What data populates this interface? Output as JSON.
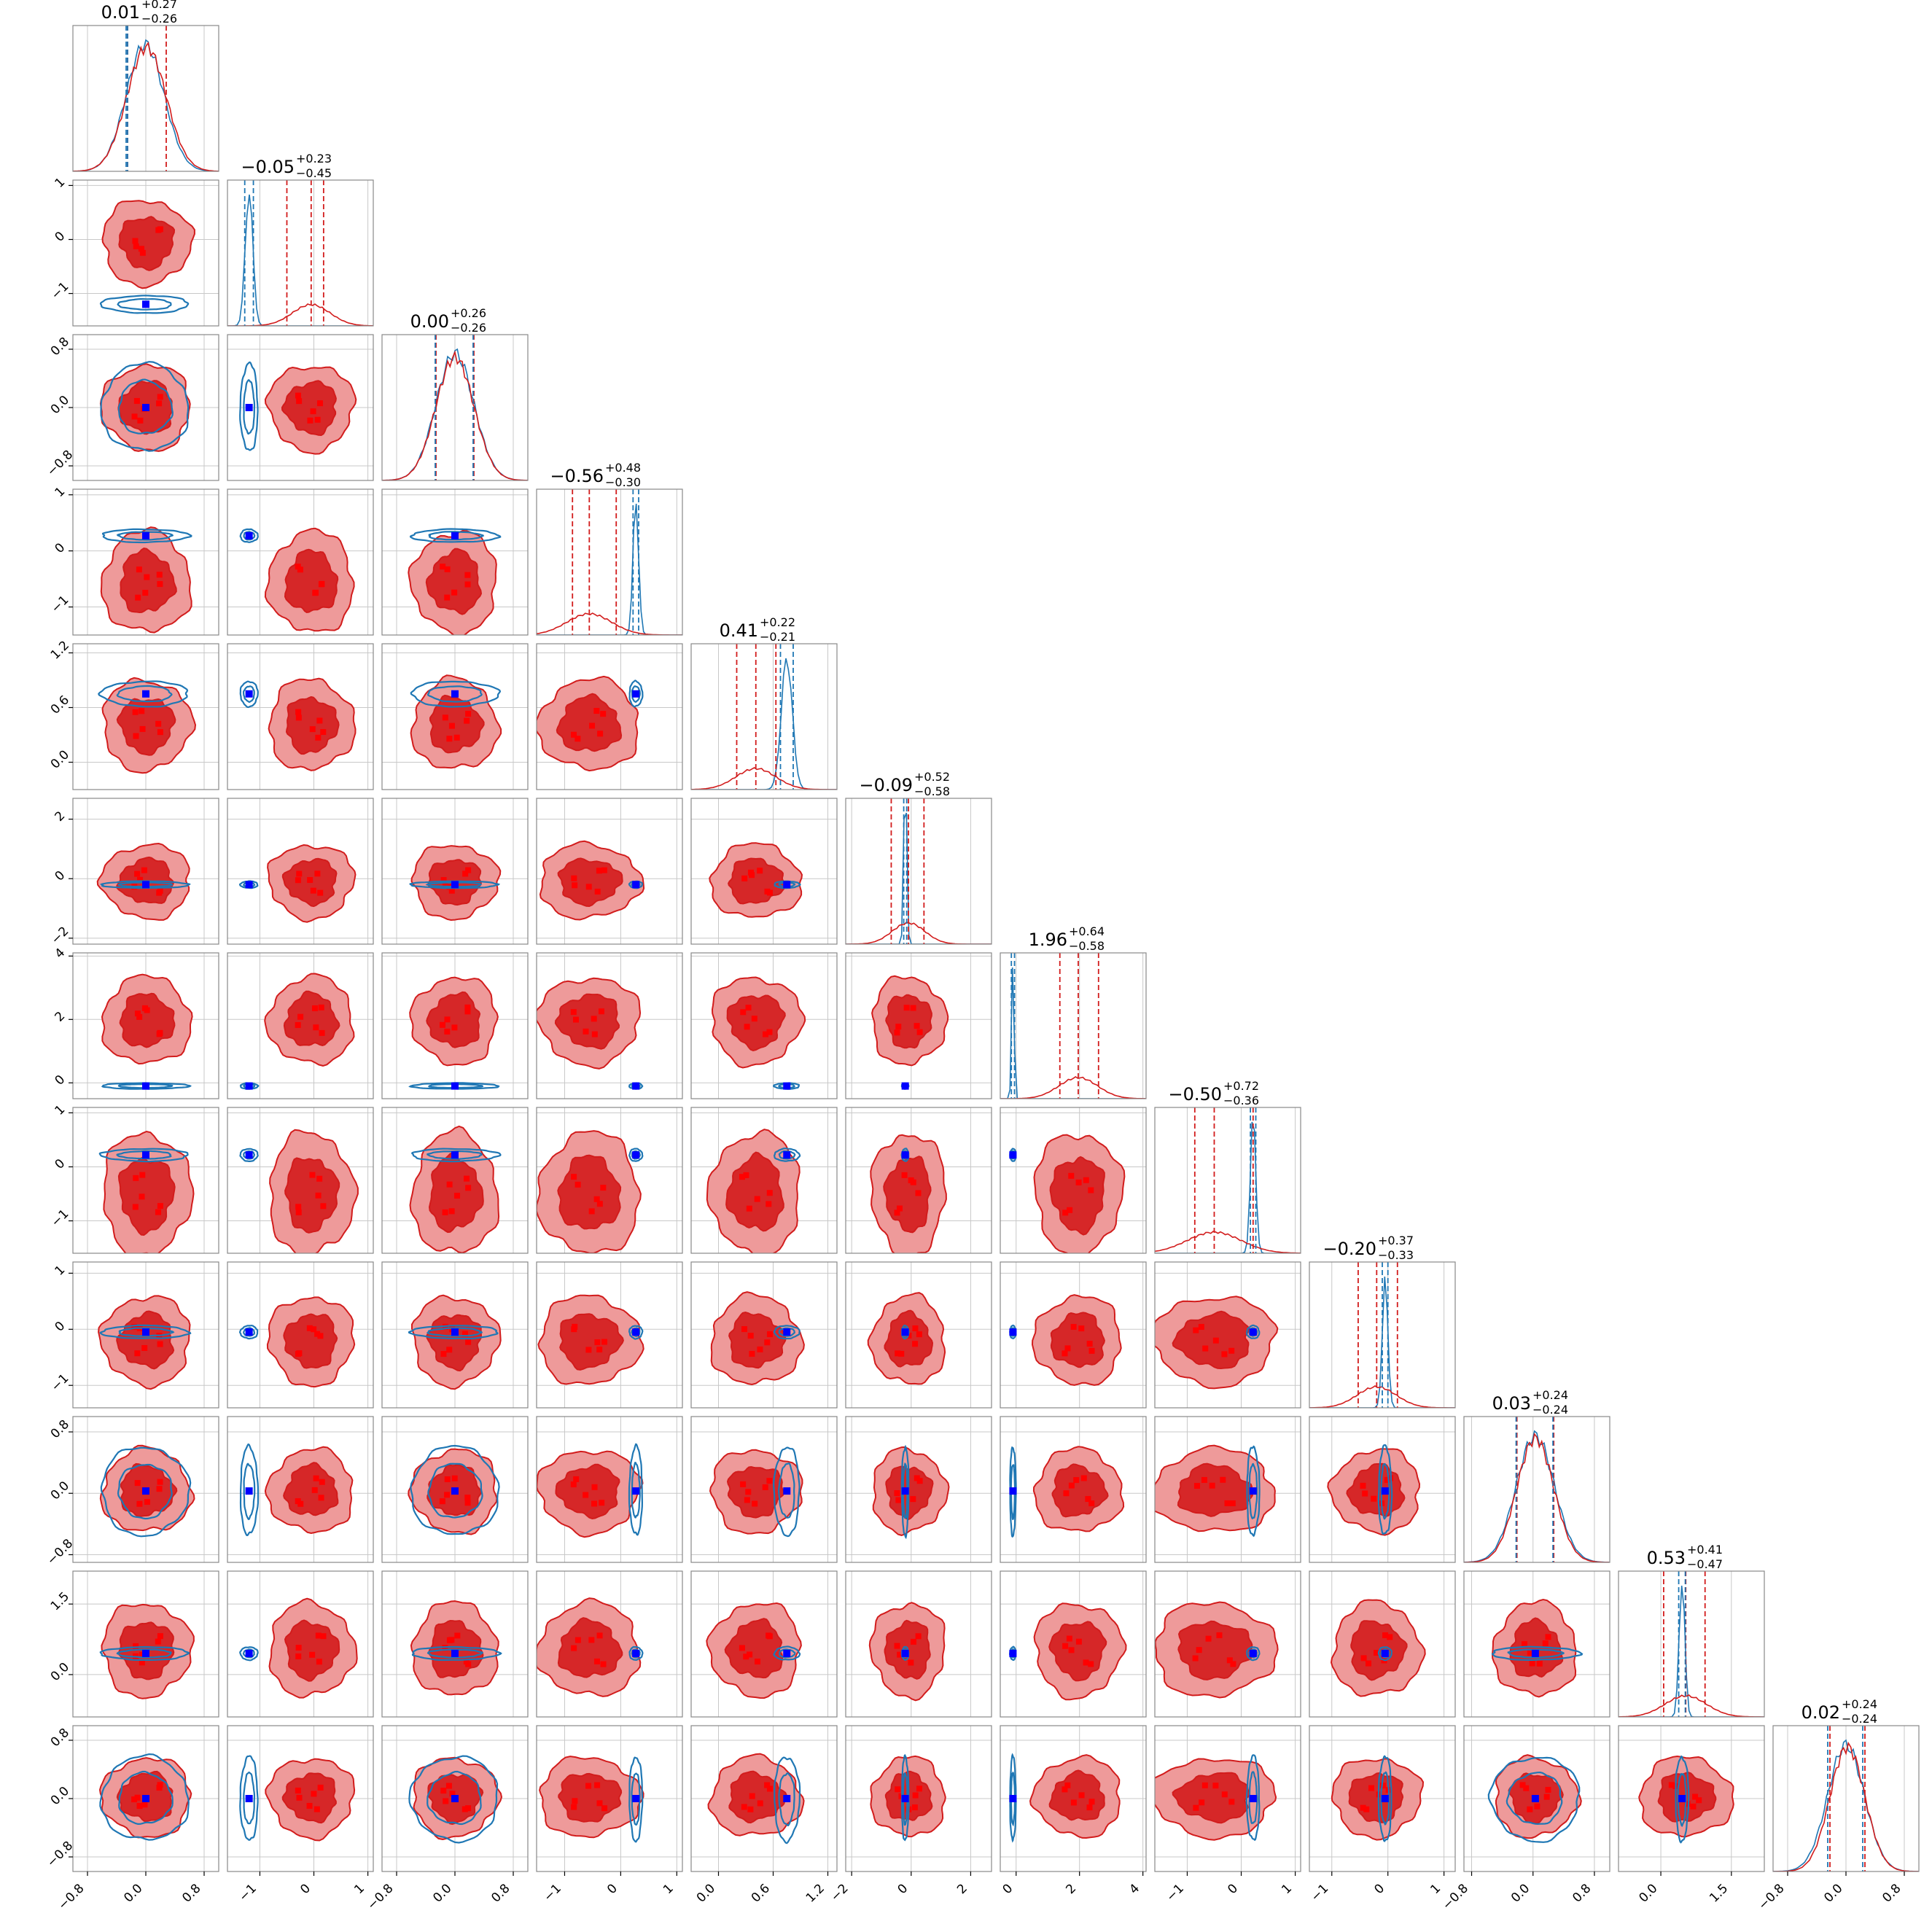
{
  "chart_data": {
    "type": "corner",
    "n_params": 12,
    "colors": {
      "red_fill_dark": "#d62728",
      "red_fill_light": "#ee9a9a",
      "red_line": "#d21c1c",
      "blue_line": "#1f77b4",
      "marker_blue": "#0000ff",
      "marker_red": "#ff0000",
      "grid": "#c8c8c8",
      "frame": "#888888"
    },
    "titles": [
      {
        "value": "0.01",
        "plus": "+0.27",
        "minus": "−0.26"
      },
      {
        "value": "−0.05",
        "plus": "+0.23",
        "minus": "−0.45"
      },
      {
        "value": "0.00",
        "plus": "+0.26",
        "minus": "−0.26"
      },
      {
        "value": "−0.56",
        "plus": "+0.48",
        "minus": "−0.30"
      },
      {
        "value": "0.41",
        "plus": "+0.22",
        "minus": "−0.21"
      },
      {
        "value": "−0.09",
        "plus": "+0.52",
        "minus": "−0.58"
      },
      {
        "value": "1.96",
        "plus": "+0.64",
        "minus": "−0.58"
      },
      {
        "value": "−0.50",
        "plus": "+0.72",
        "minus": "−0.36"
      },
      {
        "value": "−0.20",
        "plus": "+0.37",
        "minus": "−0.33"
      },
      {
        "value": "0.03",
        "plus": "+0.24",
        "minus": "−0.24"
      },
      {
        "value": "0.53",
        "plus": "+0.41",
        "minus": "−0.47"
      },
      {
        "value": "0.02",
        "plus": "+0.24",
        "minus": "−0.24"
      }
    ],
    "params": [
      {
        "range": [
          -1.0,
          1.0
        ],
        "ticks": [
          -0.8,
          0.0,
          0.8
        ],
        "tick_labels": [
          "−0.8",
          "0.0",
          "0.8"
        ],
        "red_mean": 0.01,
        "red_sd": 0.27,
        "red_q": [
          -0.25,
          0.01,
          0.28
        ],
        "blue_mean": -0.01,
        "blue_sd": 0.26,
        "blue_q": [
          -0.27,
          -0.01,
          -0.25
        ],
        "truth": 0.0
      },
      {
        "range": [
          -1.6,
          1.1
        ],
        "ticks": [
          -1,
          0,
          1
        ],
        "tick_labels": [
          "−1",
          "0",
          "1"
        ],
        "red_mean": -0.05,
        "red_sd": 0.35,
        "red_q": [
          -0.5,
          -0.05,
          0.18
        ],
        "blue_mean": -1.2,
        "blue_sd": 0.07,
        "blue_q": [
          -1.28,
          -1.2,
          -1.12
        ],
        "truth": -1.2
      },
      {
        "range": [
          -1.0,
          1.0
        ],
        "ticks": [
          -0.8,
          0.0,
          0.8
        ],
        "tick_labels": [
          "−0.8",
          "0.0",
          "0.8"
        ],
        "red_mean": 0.0,
        "red_sd": 0.26,
        "red_q": [
          -0.26,
          0.0,
          0.26
        ],
        "blue_mean": 0.0,
        "blue_sd": 0.26,
        "blue_q": [
          -0.27,
          0.0,
          0.25
        ],
        "truth": 0.0
      },
      {
        "range": [
          -1.5,
          1.1
        ],
        "ticks": [
          -1,
          0,
          1
        ],
        "tick_labels": [
          "−1",
          "0",
          "1"
        ],
        "red_mean": -0.56,
        "red_sd": 0.4,
        "red_q": [
          -0.86,
          -0.56,
          -0.08
        ],
        "blue_mean": 0.27,
        "blue_sd": 0.05,
        "blue_q": [
          0.22,
          0.27,
          0.32
        ],
        "truth": 0.27
      },
      {
        "range": [
          -0.3,
          1.3
        ],
        "ticks": [
          0.0,
          0.6,
          1.2
        ],
        "tick_labels": [
          "0.0",
          "0.6",
          "1.2"
        ],
        "red_mean": 0.41,
        "red_sd": 0.22,
        "red_q": [
          0.2,
          0.41,
          0.63
        ],
        "blue_mean": 0.75,
        "blue_sd": 0.06,
        "blue_q": [
          0.68,
          0.75,
          0.82
        ],
        "truth": 0.75
      },
      {
        "range": [
          -2.2,
          2.7
        ],
        "ticks": [
          -2,
          0,
          2
        ],
        "tick_labels": [
          "−2",
          "0",
          "2"
        ],
        "red_mean": -0.09,
        "red_sd": 0.55,
        "red_q": [
          -0.67,
          -0.09,
          0.43
        ],
        "blue_mean": -0.2,
        "blue_sd": 0.05,
        "blue_q": [
          -0.25,
          -0.2,
          -0.15
        ],
        "truth": -0.2
      },
      {
        "range": [
          -0.5,
          4.1
        ],
        "ticks": [
          0,
          2,
          4
        ],
        "tick_labels": [
          "0",
          "2",
          "4"
        ],
        "red_mean": 1.96,
        "red_sd": 0.61,
        "red_q": [
          1.38,
          1.96,
          2.6
        ],
        "blue_mean": -0.1,
        "blue_sd": 0.04,
        "blue_q": [
          -0.15,
          -0.1,
          -0.05
        ],
        "truth": -0.1
      },
      {
        "range": [
          -1.6,
          1.1
        ],
        "ticks": [
          -1,
          0,
          1
        ],
        "tick_labels": [
          "−1",
          "0",
          "1"
        ],
        "red_mean": -0.5,
        "red_sd": 0.5,
        "red_q": [
          -0.86,
          -0.5,
          0.22
        ],
        "blue_mean": 0.22,
        "blue_sd": 0.05,
        "blue_q": [
          0.17,
          0.22,
          0.27
        ],
        "truth": 0.22
      },
      {
        "range": [
          -1.4,
          1.2
        ],
        "ticks": [
          -1,
          0,
          1
        ],
        "tick_labels": [
          "−1",
          "0",
          "1"
        ],
        "red_mean": -0.2,
        "red_sd": 0.35,
        "red_q": [
          -0.53,
          -0.2,
          0.17
        ],
        "blue_mean": -0.05,
        "blue_sd": 0.05,
        "blue_q": [
          -0.1,
          -0.05,
          0.0
        ],
        "truth": -0.05
      },
      {
        "range": [
          -0.9,
          1.0
        ],
        "ticks": [
          -0.8,
          0.0,
          0.8
        ],
        "tick_labels": [
          "−0.8",
          "0.0",
          "0.8"
        ],
        "red_mean": 0.03,
        "red_sd": 0.24,
        "red_q": [
          -0.21,
          0.03,
          0.27
        ],
        "blue_mean": 0.03,
        "blue_sd": 0.25,
        "blue_q": [
          -0.22,
          0.03,
          0.26
        ],
        "truth": 0.03
      },
      {
        "range": [
          -0.9,
          2.2
        ],
        "ticks": [
          0.0,
          1.5
        ],
        "tick_labels": [
          "0.0",
          "1.5"
        ],
        "red_mean": 0.53,
        "red_sd": 0.44,
        "red_q": [
          0.06,
          0.53,
          0.94
        ],
        "blue_mean": 0.45,
        "blue_sd": 0.06,
        "blue_q": [
          0.38,
          0.45,
          0.52
        ],
        "truth": 0.45
      },
      {
        "range": [
          -1.0,
          1.0
        ],
        "ticks": [
          -0.8,
          0.0,
          0.8
        ],
        "tick_labels": [
          "−0.8",
          "0.0",
          "0.8"
        ],
        "red_mean": 0.02,
        "red_sd": 0.24,
        "red_q": [
          -0.22,
          0.02,
          0.26
        ],
        "blue_mean": 0.0,
        "blue_sd": 0.25,
        "blue_q": [
          -0.25,
          0.0,
          0.23
        ],
        "truth": 0.0
      }
    ],
    "series": [
      {
        "color": "#d62728",
        "style": "filled contours"
      },
      {
        "color": "#1f77b4",
        "style": "line contours"
      }
    ]
  }
}
